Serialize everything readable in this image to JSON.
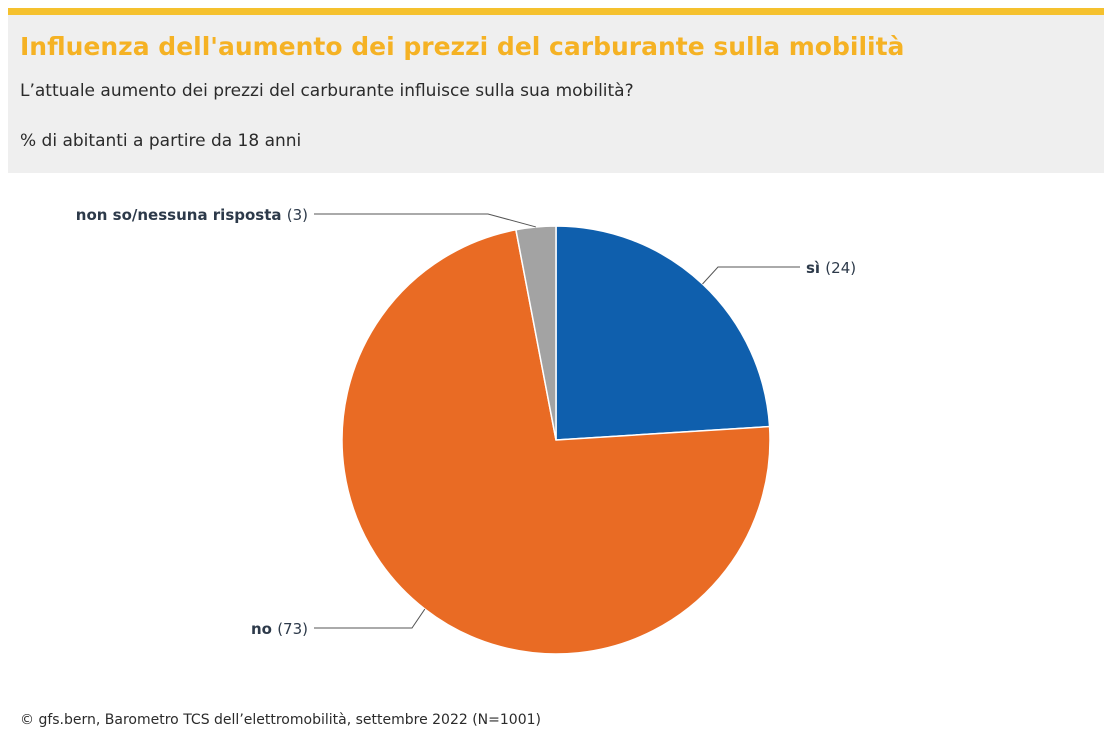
{
  "header": {
    "title": "Influenza dell'aumento dei prezzi del carburante sulla mobilità",
    "subtitle": "L’attuale aumento dei prezzi del carburante influisce sulla sua mobilità?",
    "unit_note": "% di abitanti a partire da 18 anni"
  },
  "colors": {
    "accent": "#f5c12e",
    "title": "#f5b224",
    "header_bg": "#efefef",
    "label_text": "#2d3a4a"
  },
  "chart_data": {
    "type": "pie",
    "start_angle": "12 o'clock, clockwise",
    "slices": [
      {
        "label": "sì",
        "value": 24,
        "value_text": "(24)",
        "color": "#0f5fad"
      },
      {
        "label": "no",
        "value": 73,
        "value_text": "(73)",
        "color": "#e96b24"
      },
      {
        "label": "non so/nessuna risposta",
        "value": 3,
        "value_text": "(3)",
        "color": "#a3a3a3"
      }
    ]
  },
  "footer": {
    "source": "© gfs.bern, Barometro TCS dell’elettromobilità, settembre 2022 (N=1001)"
  }
}
